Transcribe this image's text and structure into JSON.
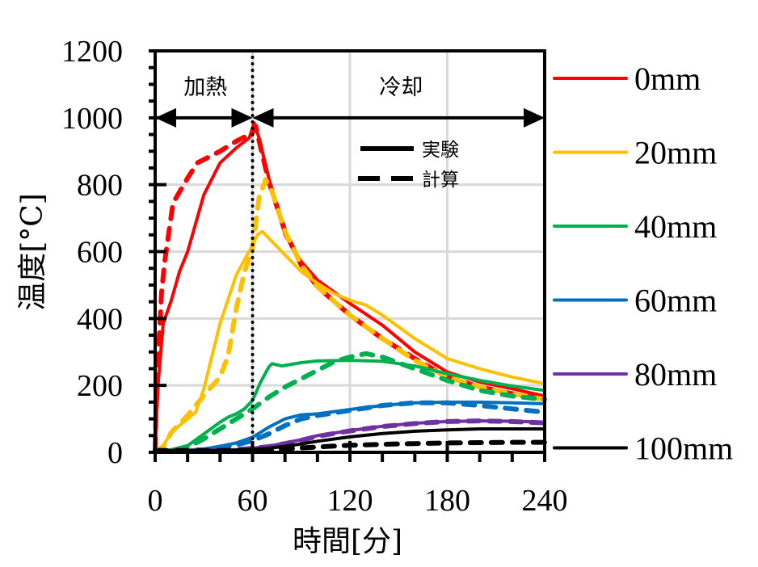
{
  "chart_data": {
    "type": "line",
    "title": "",
    "xlabel": "時間[分]",
    "ylabel": "温度[°C]",
    "xlim": [
      0,
      240
    ],
    "ylim": [
      0,
      1200
    ],
    "x_ticks": [
      0,
      60,
      120,
      180,
      240
    ],
    "x_tick_labels": [
      "0",
      "60",
      "120",
      "180",
      "240"
    ],
    "x_minor_step": 20,
    "y_ticks": [
      0,
      200,
      400,
      600,
      800,
      1000,
      1200
    ],
    "y_tick_labels": [
      "0",
      "200",
      "400",
      "600",
      "800",
      "1000",
      "1200"
    ],
    "y_minor_step": 50,
    "grid": true,
    "legend_position": "right",
    "style_legend": [
      {
        "label": "実験",
        "style": "solid"
      },
      {
        "label": "計算",
        "style": "dashed"
      }
    ],
    "phase_divider_x": 60,
    "phases": [
      {
        "label": "加熱",
        "from": 0,
        "to": 60,
        "arrow_y": 1000
      },
      {
        "label": "冷却",
        "from": 60,
        "to": 240,
        "arrow_y": 1000
      }
    ],
    "series": [
      {
        "name": "0mm",
        "color": "#ff0000",
        "kind": "実験",
        "x": [
          0,
          1,
          2,
          5,
          10,
          15,
          20,
          30,
          40,
          50,
          58,
          61,
          64,
          70,
          80,
          90,
          100,
          120,
          140,
          160,
          180,
          200,
          220,
          240
        ],
        "y": [
          10,
          120,
          215,
          385,
          455,
          540,
          600,
          770,
          865,
          910,
          940,
          985,
          940,
          820,
          650,
          570,
          515,
          445,
          380,
          300,
          240,
          210,
          190,
          168
        ]
      },
      {
        "name": "0mm",
        "color": "#ff0000",
        "kind": "計算",
        "x": [
          0,
          1,
          2,
          4,
          6,
          11,
          20,
          26,
          40,
          50,
          60,
          62,
          66,
          70,
          80,
          90,
          100,
          120,
          140,
          160,
          180,
          200,
          220,
          240
        ],
        "y": [
          10,
          200,
          290,
          480,
          575,
          745,
          820,
          865,
          900,
          930,
          955,
          975,
          890,
          810,
          660,
          560,
          495,
          410,
          340,
          280,
          225,
          195,
          175,
          158
        ]
      },
      {
        "name": "20mm",
        "color": "#ffc000",
        "kind": "実験",
        "x": [
          0,
          5,
          10,
          20,
          25,
          30,
          40,
          50,
          60,
          63,
          66,
          70,
          80,
          90,
          100,
          110,
          120,
          130,
          140,
          160,
          180,
          200,
          220,
          240
        ],
        "y": [
          5,
          20,
          60,
          100,
          120,
          190,
          385,
          530,
          620,
          650,
          660,
          640,
          590,
          540,
          505,
          475,
          455,
          440,
          410,
          340,
          280,
          250,
          225,
          205
        ]
      },
      {
        "name": "20mm",
        "color": "#ffc000",
        "kind": "計算",
        "x": [
          0,
          5,
          10,
          20,
          30,
          40,
          45,
          50,
          55,
          60,
          64,
          68,
          72,
          80,
          90,
          100,
          120,
          140,
          160,
          180,
          200,
          220,
          240
        ],
        "y": [
          5,
          15,
          60,
          110,
          170,
          225,
          290,
          430,
          540,
          610,
          760,
          815,
          780,
          660,
          560,
          495,
          410,
          340,
          275,
          225,
          195,
          175,
          158
        ]
      },
      {
        "name": "40mm",
        "color": "#00b050",
        "kind": "実験",
        "x": [
          0,
          10,
          20,
          30,
          40,
          45,
          50,
          55,
          60,
          65,
          70,
          72,
          78,
          90,
          100,
          120,
          140,
          160,
          180,
          200,
          220,
          240
        ],
        "y": [
          5,
          8,
          20,
          55,
          90,
          105,
          115,
          130,
          155,
          210,
          255,
          265,
          258,
          268,
          273,
          275,
          272,
          258,
          235,
          215,
          198,
          185
        ]
      },
      {
        "name": "40mm",
        "color": "#00b050",
        "kind": "計算",
        "x": [
          0,
          10,
          20,
          30,
          40,
          50,
          60,
          70,
          80,
          90,
          100,
          110,
          120,
          130,
          140,
          160,
          180,
          200,
          220,
          240
        ],
        "y": [
          5,
          6,
          15,
          40,
          70,
          100,
          130,
          165,
          195,
          220,
          245,
          270,
          285,
          295,
          285,
          250,
          215,
          185,
          168,
          158
        ]
      },
      {
        "name": "60mm",
        "color": "#0070c0",
        "kind": "実験",
        "x": [
          0,
          20,
          30,
          40,
          50,
          60,
          70,
          80,
          90,
          100,
          120,
          140,
          160,
          180,
          200,
          220,
          240
        ],
        "y": [
          5,
          6,
          10,
          18,
          28,
          45,
          75,
          100,
          112,
          115,
          128,
          140,
          148,
          150,
          150,
          148,
          145
        ]
      },
      {
        "name": "60mm",
        "color": "#0070c0",
        "kind": "計算",
        "x": [
          0,
          20,
          30,
          40,
          50,
          60,
          70,
          80,
          90,
          100,
          120,
          140,
          160,
          180,
          200,
          220,
          240
        ],
        "y": [
          5,
          6,
          8,
          14,
          22,
          35,
          55,
          80,
          100,
          110,
          125,
          140,
          148,
          148,
          140,
          130,
          120
        ]
      },
      {
        "name": "80mm",
        "color": "#7030a0",
        "kind": "実験",
        "x": [
          0,
          30,
          50,
          60,
          70,
          80,
          90,
          100,
          120,
          140,
          160,
          180,
          200,
          220,
          240
        ],
        "y": [
          5,
          6,
          8,
          12,
          18,
          28,
          38,
          50,
          65,
          78,
          87,
          92,
          94,
          93,
          90
        ]
      },
      {
        "name": "80mm",
        "color": "#7030a0",
        "kind": "計算",
        "x": [
          0,
          30,
          50,
          60,
          70,
          80,
          90,
          100,
          120,
          140,
          160,
          180,
          200,
          220,
          240
        ],
        "y": [
          5,
          6,
          8,
          12,
          17,
          26,
          36,
          48,
          64,
          77,
          86,
          92,
          94,
          92,
          88
        ]
      },
      {
        "name": "100mm",
        "color": "#000000",
        "kind": "実験",
        "x": [
          0,
          40,
          60,
          70,
          80,
          90,
          100,
          120,
          140,
          160,
          180,
          200,
          220,
          240
        ],
        "y": [
          5,
          5,
          8,
          12,
          18,
          25,
          33,
          46,
          56,
          63,
          67,
          70,
          70,
          70
        ]
      },
      {
        "name": "100mm",
        "color": "#000000",
        "kind": "計算",
        "x": [
          0,
          40,
          60,
          70,
          80,
          90,
          100,
          120,
          140,
          160,
          180,
          200,
          220,
          240
        ],
        "y": [
          5,
          5,
          6,
          8,
          10,
          13,
          16,
          21,
          24,
          26,
          28,
          29,
          30,
          30
        ]
      }
    ],
    "legend": [
      {
        "label": "0mm",
        "color": "#ff0000"
      },
      {
        "label": "20mm",
        "color": "#ffc000"
      },
      {
        "label": "40mm",
        "color": "#00b050"
      },
      {
        "label": "60mm",
        "color": "#0070c0"
      },
      {
        "label": "80mm",
        "color": "#7030a0"
      },
      {
        "label": "100mm",
        "color": "#000000"
      }
    ]
  }
}
